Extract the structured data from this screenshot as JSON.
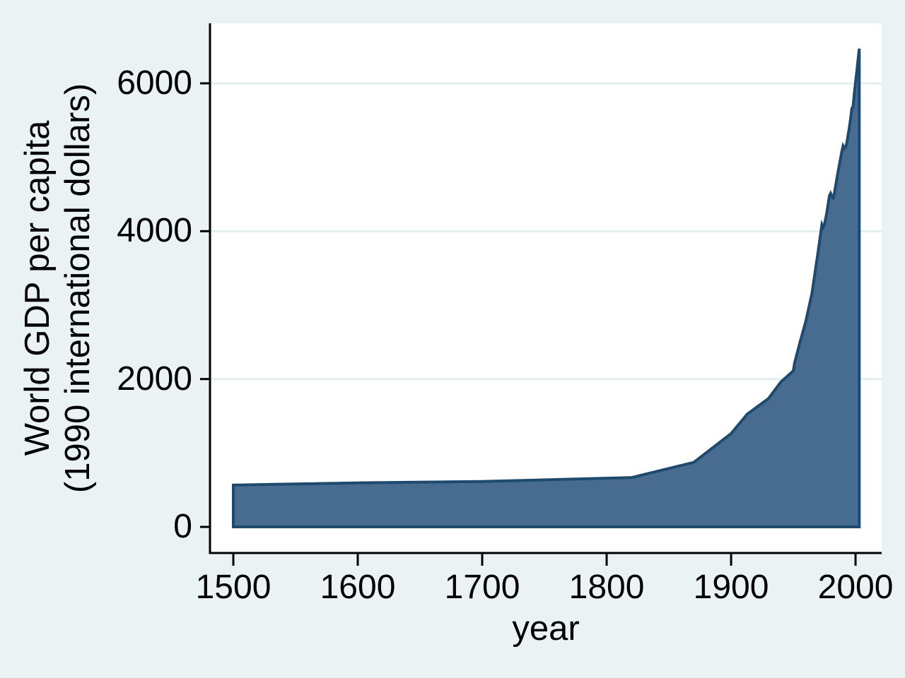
{
  "chart_data": {
    "type": "area",
    "title": "",
    "xlabel": "year",
    "ylabel_lines": [
      "World GDP per capita",
      "(1990 international dollars)"
    ],
    "legend_position": "none",
    "grid": true,
    "grid_values": [
      2000,
      4000,
      6000
    ],
    "x_ticks": [
      {
        "value": 1500,
        "label": "1500"
      },
      {
        "value": 1600,
        "label": "1600"
      },
      {
        "value": 1700,
        "label": "1700"
      },
      {
        "value": 1800,
        "label": "1800"
      },
      {
        "value": 1900,
        "label": "1900"
      },
      {
        "value": 2000,
        "label": "2000"
      }
    ],
    "y_ticks": [
      {
        "value": 0,
        "label": "0"
      },
      {
        "value": 2000,
        "label": "2000"
      },
      {
        "value": 4000,
        "label": "4000"
      },
      {
        "value": 6000,
        "label": "6000"
      }
    ],
    "xlim": [
      1481.25,
      2021
    ],
    "ylim": [
      -353,
      6812
    ],
    "baseline": 0,
    "series": [
      {
        "name": "World GDP per capita (1990 international dollars)",
        "points": [
          [
            1500,
            566
          ],
          [
            1600,
            596
          ],
          [
            1700,
            615
          ],
          [
            1820,
            667
          ],
          [
            1870,
            873
          ],
          [
            1900,
            1262
          ],
          [
            1913,
            1526
          ],
          [
            1930,
            1735
          ],
          [
            1940,
            1960
          ],
          [
            1950,
            2111
          ],
          [
            1951,
            2215
          ],
          [
            1955,
            2475
          ],
          [
            1960,
            2777
          ],
          [
            1965,
            3160
          ],
          [
            1970,
            3730
          ],
          [
            1973,
            4091
          ],
          [
            1974,
            4055
          ],
          [
            1975,
            4088
          ],
          [
            1977,
            4260
          ],
          [
            1979,
            4480
          ],
          [
            1980,
            4512
          ],
          [
            1981,
            4470
          ],
          [
            1982,
            4450
          ],
          [
            1983,
            4515
          ],
          [
            1986,
            4810
          ],
          [
            1989,
            5080
          ],
          [
            1990,
            5154
          ],
          [
            1991,
            5120
          ],
          [
            1992,
            5140
          ],
          [
            1993,
            5195
          ],
          [
            1995,
            5400
          ],
          [
            1996,
            5520
          ],
          [
            1997,
            5660
          ],
          [
            1998,
            5685
          ],
          [
            1999,
            5860
          ],
          [
            2000,
            6012
          ],
          [
            2001,
            6160
          ],
          [
            2002,
            6320
          ],
          [
            2003,
            6469
          ]
        ]
      }
    ],
    "colors": {
      "canvas_background": "#eaf2f3",
      "plot_background": "#ffffff",
      "gridline": "#e3edf0",
      "area_fill": "#486c90",
      "area_stroke": "#1e4a6e",
      "axis": "#000000",
      "text": "#000000"
    }
  }
}
